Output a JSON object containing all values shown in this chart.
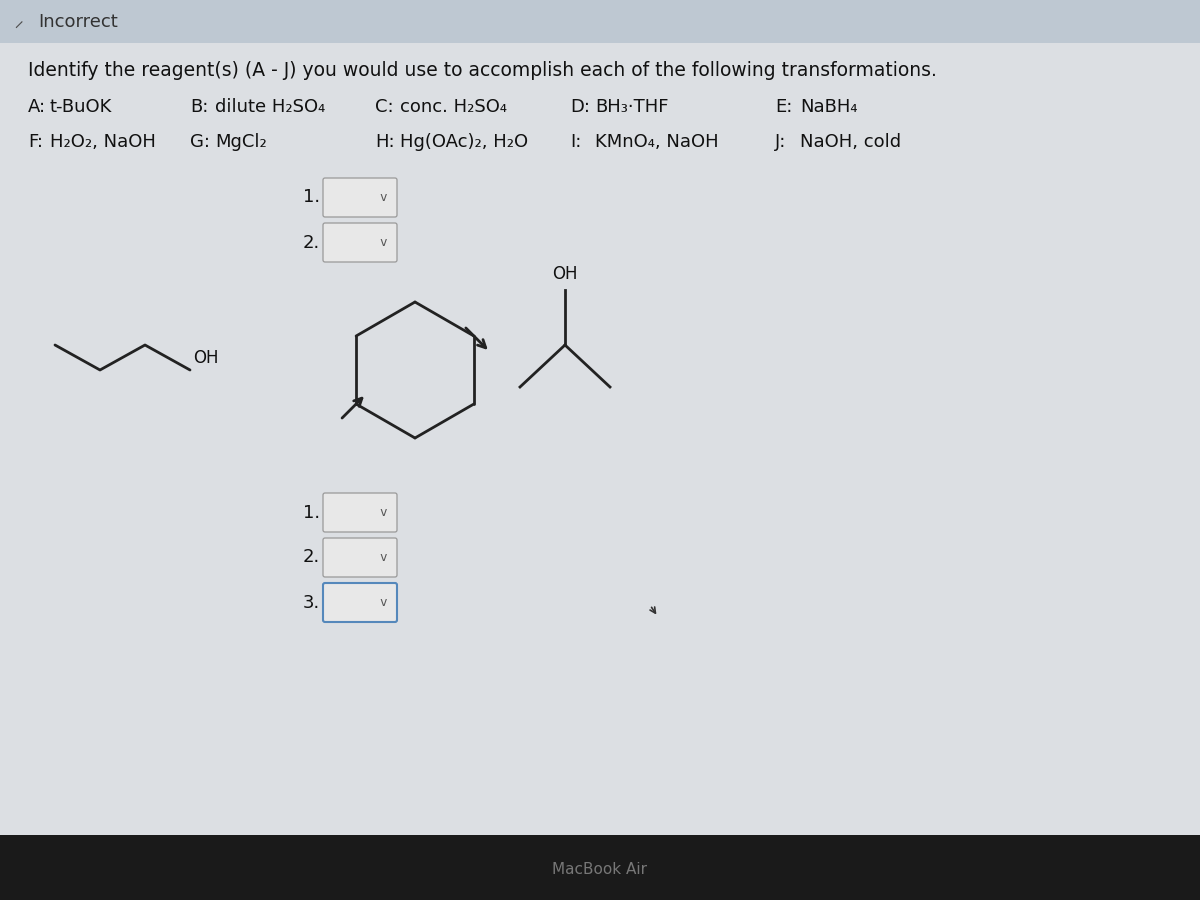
{
  "title_bar_text": "Incorrect",
  "title_bar_bg": "#bec8d2",
  "main_bg": "#c8cfd6",
  "content_bg": "#dcdfe3",
  "instruction": "Identify the reagent(s) (A - J) you would use to accomplish each of the following transformations.",
  "reagents_row1": [
    {
      "label": "A:",
      "text": "t-BuOK"
    },
    {
      "label": "B:",
      "text": "dilute H₂SO₄"
    },
    {
      "label": "C:",
      "text": "conc. H₂SO₄"
    },
    {
      "label": "D:",
      "text": "BH₃·THF"
    },
    {
      "label": "E:",
      "text": "NaBH₄"
    }
  ],
  "reagents_row2": [
    {
      "label": "F:",
      "text": "H₂O₂, NaOH"
    },
    {
      "label": "G:",
      "text": "MgCl₂"
    },
    {
      "label": "H:",
      "text": "Hg(OAc)₂, H₂O"
    },
    {
      "label": "I:",
      "text": "KMnO₄, NaOH"
    },
    {
      "label": "J:",
      "text": "NaOH, cold"
    }
  ],
  "macbook_text": "MacBook Air",
  "footer_bg": "#1a1a1a",
  "line_color": "#222222",
  "box_edge_color": "#999999",
  "box_face_color": "#e8e8e8",
  "box_blue_edge": "#5588bb",
  "text_color": "#111111"
}
